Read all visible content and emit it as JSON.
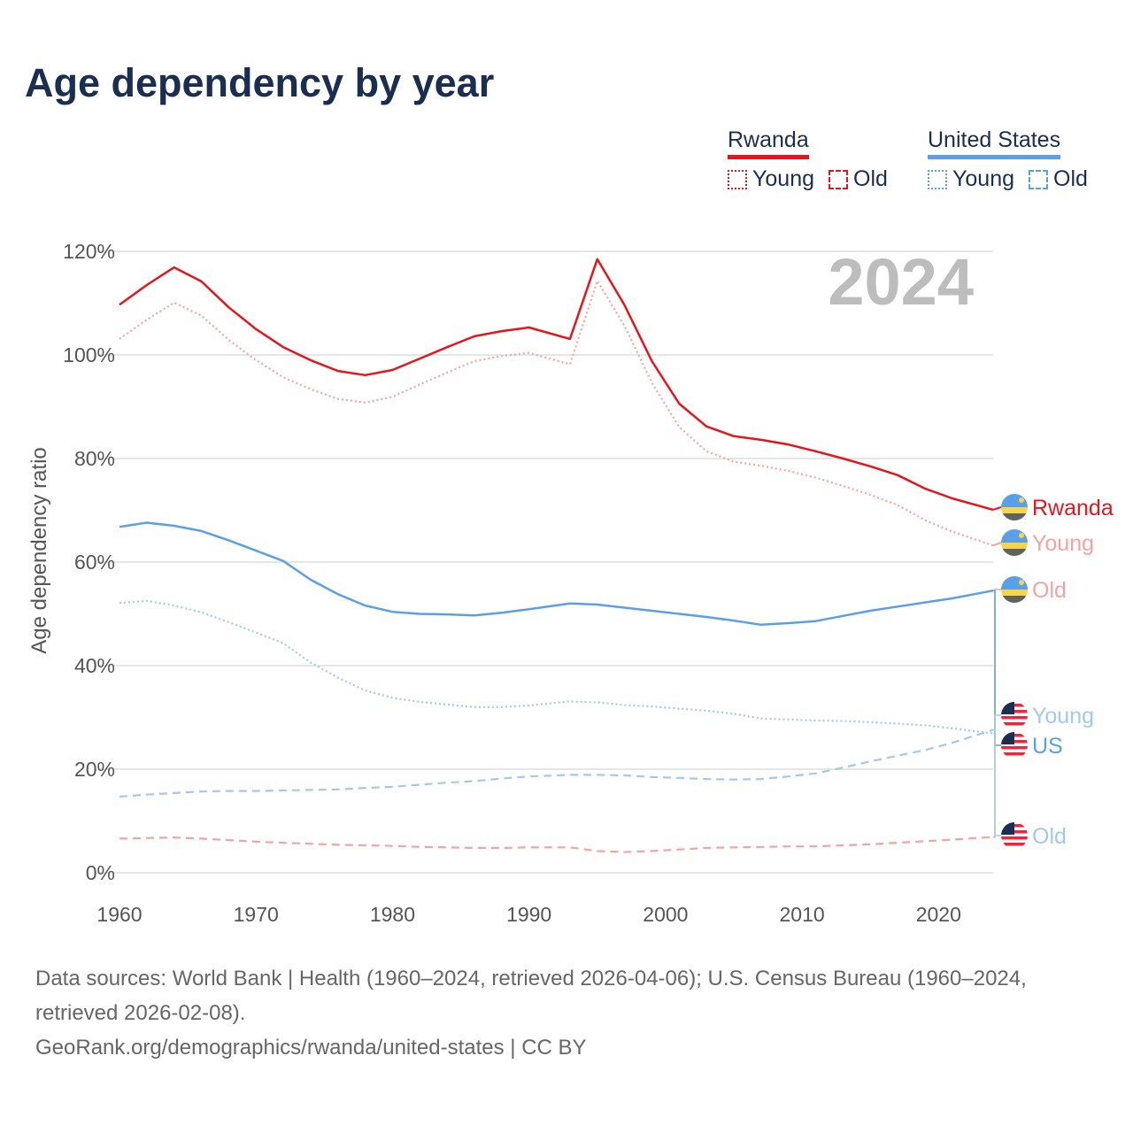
{
  "title": "Age dependency by year",
  "legend": {
    "groups": [
      {
        "country": "Rwanda",
        "color": "#e8141b",
        "items": [
          "Young",
          "Old"
        ]
      },
      {
        "country": "United States",
        "color": "#5aa0e8",
        "items": [
          "Young",
          "Old"
        ]
      }
    ]
  },
  "year_watermark": "2024",
  "chart_data": {
    "type": "line",
    "title": "Age dependency by year",
    "xlabel": "",
    "ylabel": "Age dependency ratio",
    "xlim": [
      1960,
      2024
    ],
    "ylim": [
      0,
      120
    ],
    "x_ticks": [
      "1960",
      "1970",
      "1980",
      "1990",
      "2000",
      "2010",
      "2020"
    ],
    "y_ticks": [
      "0%",
      "20%",
      "40%",
      "60%",
      "80%",
      "100%",
      "120%"
    ],
    "grid": true,
    "x": [
      1960,
      1962,
      1964,
      1966,
      1968,
      1970,
      1972,
      1974,
      1976,
      1978,
      1980,
      1982,
      1984,
      1986,
      1988,
      1990,
      1993,
      1995,
      1997,
      1999,
      2001,
      2003,
      2005,
      2007,
      2009,
      2011,
      2013,
      2015,
      2017,
      2019,
      2021,
      2024
    ],
    "series": [
      {
        "name": "Rwanda",
        "end_label": "Rwanda",
        "country": "rwanda",
        "style": "solid",
        "color": "#e8141b",
        "values": [
          109.7,
          113.5,
          116.9,
          114.2,
          109.2,
          105,
          101.5,
          99,
          96.9,
          96.1,
          97.1,
          99.3,
          101.5,
          103.6,
          104.6,
          105.3,
          103.1,
          118.5,
          109.6,
          98.8,
          90.6,
          86.2,
          84.3,
          83.6,
          82.7,
          81.4,
          80,
          78.5,
          76.8,
          74.2,
          72.3,
          70.1
        ]
      },
      {
        "name": "Rwanda Young",
        "end_label": "Young",
        "country": "rwanda",
        "style": "dotted",
        "color": "#f4a3a3",
        "values": [
          103.1,
          106.8,
          110.1,
          107.6,
          102.9,
          99,
          95.7,
          93.4,
          91.5,
          90.8,
          91.9,
          94.3,
          96.6,
          98.8,
          99.8,
          100.4,
          98.2,
          114.3,
          105.6,
          94.6,
          86.1,
          81.4,
          79.4,
          78.6,
          77.6,
          76.3,
          74.7,
          73,
          71,
          68.1,
          65.9,
          63.2
        ]
      },
      {
        "name": "Rwanda Old",
        "end_label": "Old",
        "country": "rwanda",
        "style": "dashed",
        "color": "#f4a3a3",
        "values": [
          6.6,
          6.7,
          6.8,
          6.6,
          6.3,
          6.0,
          5.8,
          5.6,
          5.4,
          5.3,
          5.2,
          5.0,
          4.9,
          4.8,
          4.8,
          4.9,
          4.9,
          4.2,
          4.0,
          4.2,
          4.5,
          4.8,
          4.9,
          5.0,
          5.1,
          5.1,
          5.3,
          5.5,
          5.8,
          6.1,
          6.4,
          6.9
        ]
      },
      {
        "name": "United States",
        "end_label": "US",
        "country": "us",
        "style": "solid",
        "color": "#5aa0e8",
        "values": [
          66.8,
          67.6,
          67.0,
          66.0,
          64.2,
          62.2,
          60.2,
          56.6,
          53.8,
          51.6,
          50.4,
          50.0,
          49.9,
          49.7,
          50.2,
          50.9,
          52.0,
          51.8,
          51.2,
          50.6,
          50.0,
          49.4,
          48.7,
          47.9,
          48.2,
          48.6,
          49.6,
          50.6,
          51.4,
          52.2,
          53.0,
          54.5
        ]
      },
      {
        "name": "United States Young",
        "end_label": "Young",
        "country": "us",
        "style": "dotted",
        "color": "#a3c8f0",
        "values": [
          52.1,
          52.5,
          51.6,
          50.3,
          48.4,
          46.4,
          44.3,
          40.6,
          37.7,
          35.2,
          33.8,
          33,
          32.5,
          32,
          32,
          32.3,
          33.1,
          32.9,
          32.4,
          32.1,
          31.7,
          31.3,
          30.7,
          29.8,
          29.6,
          29.4,
          29.3,
          29.1,
          28.8,
          28.5,
          27.9,
          26.9
        ]
      },
      {
        "name": "United States Old",
        "end_label": "Old",
        "country": "us",
        "style": "dashed",
        "color": "#a3c8f0",
        "values": [
          14.7,
          15.1,
          15.4,
          15.7,
          15.8,
          15.8,
          15.9,
          16.0,
          16.1,
          16.4,
          16.6,
          17.0,
          17.4,
          17.7,
          18.2,
          18.6,
          18.9,
          18.9,
          18.8,
          18.5,
          18.3,
          18.1,
          18.0,
          18.1,
          18.6,
          19.2,
          20.3,
          21.5,
          22.6,
          23.7,
          25.1,
          27.6
        ]
      }
    ]
  },
  "footer": {
    "sources": "Data sources: World Bank | Health (1960–2024, retrieved 2026-04-06); U.S. Census Bureau (1960–2024, retrieved 2026-02-08).",
    "link": "GeoRank.org/demographics/rwanda/united-states",
    "license": " | CC BY"
  }
}
